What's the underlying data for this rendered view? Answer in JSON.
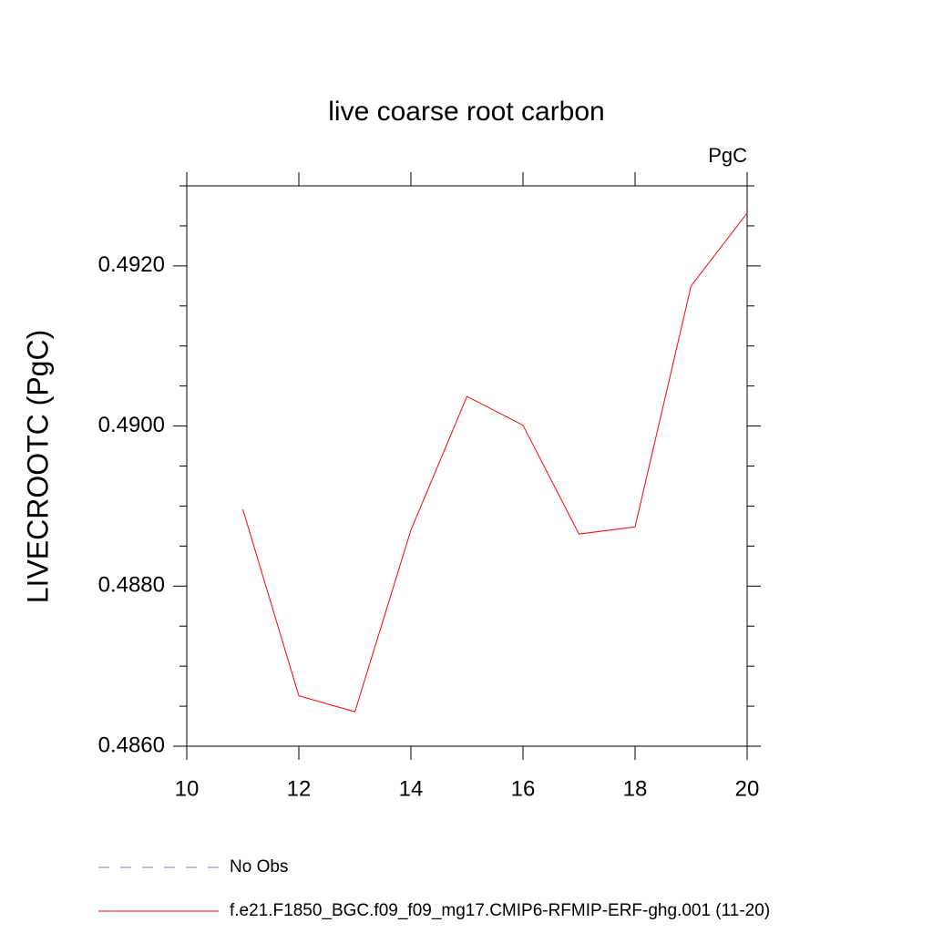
{
  "chart_data": {
    "type": "line",
    "title": "live coarse root carbon",
    "units": "PgC",
    "y_label": "LIVECROOTC  (PgC)",
    "x": [
      11,
      12,
      13,
      14,
      15,
      16,
      17,
      18,
      19,
      20
    ],
    "series": [
      {
        "name": "No Obs",
        "color": "#7f7fbf",
        "dashed": true,
        "values": [
          null,
          null,
          null,
          null,
          null,
          null,
          null,
          null,
          null,
          null
        ]
      },
      {
        "name": "f.e21.F1850_BGC.f09_f09_mg17.CMIP6-RFMIP-ERF-ghg.001 (11-20)",
        "color": "#ff0000",
        "dashed": false,
        "values": [
          0.48896,
          0.48663,
          0.48643,
          0.4887,
          0.49037,
          0.49001,
          0.48865,
          0.48874,
          0.49175,
          0.49266
        ]
      }
    ],
    "xlim": [
      10,
      20
    ],
    "xticks": [
      10,
      12,
      14,
      16,
      18,
      20
    ],
    "ylim": [
      0.486,
      0.493
    ],
    "yticks": [
      {
        "value": 0.486,
        "label": "0.4860"
      },
      {
        "value": 0.488,
        "label": "0.4880"
      },
      {
        "value": 0.49,
        "label": "0.4900"
      },
      {
        "value": 0.492,
        "label": "0.4920"
      }
    ],
    "yminorticks": [
      0.4865,
      0.487,
      0.4875,
      0.4885,
      0.489,
      0.4895,
      0.4905,
      0.491,
      0.4915,
      0.4925,
      0.493
    ]
  }
}
